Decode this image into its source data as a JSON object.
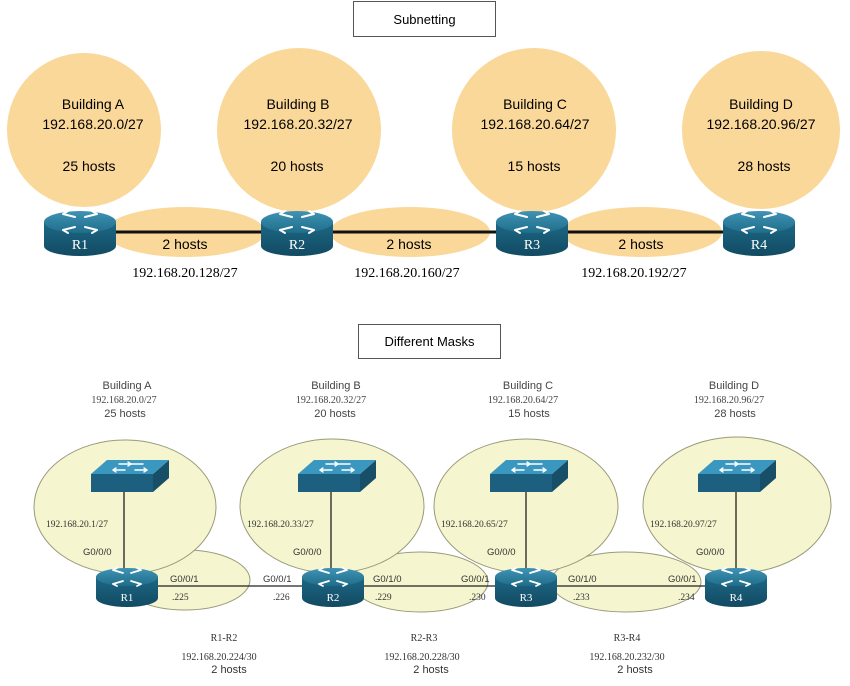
{
  "titles": {
    "subnetting": "Subnetting",
    "different_masks": "Different Masks"
  },
  "top": {
    "buildings": [
      {
        "name": "Building A",
        "network": "192.168.20.0/27",
        "hosts": "25 hosts"
      },
      {
        "name": "Building B",
        "network": "192.168.20.32/27",
        "hosts": "20 hosts"
      },
      {
        "name": "Building C",
        "network": "192.168.20.64/27",
        "hosts": "15 hosts"
      },
      {
        "name": "Building D",
        "network": "192.168.20.96/27",
        "hosts": "28 hosts"
      }
    ],
    "routers": [
      "R1",
      "R2",
      "R3",
      "R4"
    ],
    "links": [
      {
        "hosts": "2 hosts",
        "network": "192.168.20.128/27"
      },
      {
        "hosts": "2 hosts",
        "network": "192.168.20.160/27"
      },
      {
        "hosts": "2 hosts",
        "network": "192.168.20.192/27"
      }
    ],
    "colors": {
      "fill": "#f9d89a",
      "router": "#1f6d8a",
      "link": "#111111"
    }
  },
  "bottom": {
    "buildings": [
      {
        "name": "Building A",
        "network": "192.168.20.0/27",
        "hosts": "25 hosts",
        "gateway": "192.168.20.1/27",
        "lan_if": "G0/0/0"
      },
      {
        "name": "Building B",
        "network": "192.168.20.32/27",
        "hosts": "20 hosts",
        "gateway": "192.168.20.33/27",
        "lan_if": "G0/0/0"
      },
      {
        "name": "Building C",
        "network": "192.168.20.64/27",
        "hosts": "15 hosts",
        "gateway": "192.168.20.65/27",
        "lan_if": "G0/0/0"
      },
      {
        "name": "Building D",
        "network": "192.168.20.96/27",
        "hosts": "28 hosts",
        "gateway": "192.168.20.97/27",
        "lan_if": "G0/0/0"
      }
    ],
    "routers": [
      "R1",
      "R2",
      "R3",
      "R4"
    ],
    "links": [
      {
        "name": "R1-R2",
        "network": "192.168.20.224/30",
        "hosts": "2 hosts",
        "left_if": "G0/0/1",
        "left_ip": ".225",
        "right_if": "G0/0/1",
        "right_ip": ".226"
      },
      {
        "name": "R2-R3",
        "network": "192.168.20.228/30",
        "hosts": "2 hosts",
        "left_if": "G0/1/0",
        "left_ip": ".229",
        "right_if": "G0/0/1",
        "right_ip": ".230"
      },
      {
        "name": "R3-R4",
        "network": "192.168.20.232/30",
        "hosts": "2 hosts",
        "left_if": "G0/1/0",
        "left_ip": ".233",
        "right_if": "G0/0/1",
        "right_ip": ".234"
      }
    ],
    "colors": {
      "fill": "#f5f5cf",
      "stroke": "#9a9a7a",
      "switch": "#2a7ea6",
      "router": "#1f6d8a"
    }
  }
}
